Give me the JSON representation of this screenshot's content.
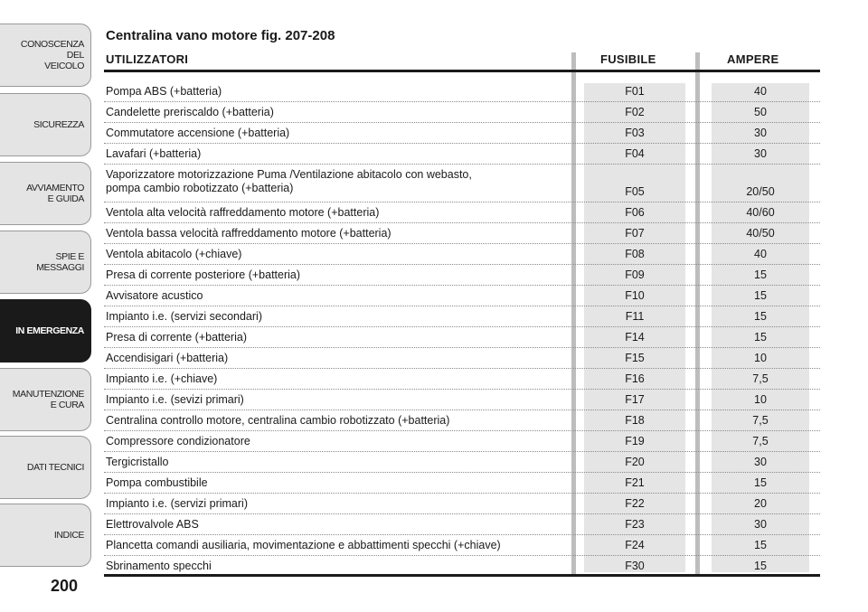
{
  "sidebar": {
    "tabs": [
      {
        "label": "CONOSCENZA\nDEL\nVEICOLO",
        "active": false
      },
      {
        "label": "SICUREZZA",
        "active": false
      },
      {
        "label": "AVVIAMENTO\nE GUIDA",
        "active": false
      },
      {
        "label": "SPIE E\nMESSAGGI",
        "active": false
      },
      {
        "label": "IN EMERGENZA",
        "active": true
      },
      {
        "label": "MANUTENZIONE\nE CURA",
        "active": false
      },
      {
        "label": "DATI TECNICI",
        "active": false
      },
      {
        "label": "INDICE",
        "active": false
      }
    ]
  },
  "page_number": "200",
  "title": "Centralina vano motore fig. 207-208",
  "table": {
    "headers": {
      "utilizzatori": "UTILIZZATORI",
      "fusibile": "FUSIBILE",
      "ampere": "AMPERE"
    },
    "rows": [
      {
        "u": "Pompa ABS (+batteria)",
        "f": "F01",
        "a": "40"
      },
      {
        "u": "Candelette preriscaldo (+batteria)",
        "f": "F02",
        "a": "50"
      },
      {
        "u": "Commutatore accensione (+batteria)",
        "f": "F03",
        "a": "30"
      },
      {
        "u": "Lavafari (+batteria)",
        "f": "F04",
        "a": "30"
      },
      {
        "u": "Vaporizzatore motorizzazione Puma /Ventilazione abitacolo con webasto,\npompa cambio robotizzato (+batteria)",
        "f": "F05",
        "a": "20/50"
      },
      {
        "u": "Ventola alta velocità raffreddamento motore (+batteria)",
        "f": "F06",
        "a": "40/60"
      },
      {
        "u": "Ventola bassa velocità raffreddamento motore (+batteria)",
        "f": "F07",
        "a": "40/50"
      },
      {
        "u": "Ventola abitacolo (+chiave)",
        "f": "F08",
        "a": "40"
      },
      {
        "u": "Presa di corrente posteriore (+batteria)",
        "f": "F09",
        "a": "15"
      },
      {
        "u": "Avvisatore acustico",
        "f": "F10",
        "a": "15"
      },
      {
        "u": "Impianto i.e. (servizi secondari)",
        "f": "F11",
        "a": "15"
      },
      {
        "u": "Presa di corrente (+batteria)",
        "f": "F14",
        "a": "15"
      },
      {
        "u": "Accendisigari (+batteria)",
        "f": "F15",
        "a": "10"
      },
      {
        "u": "Impianto i.e. (+chiave)",
        "f": "F16",
        "a": "7,5"
      },
      {
        "u": "Impianto i.e. (sevizi primari)",
        "f": "F17",
        "a": "10"
      },
      {
        "u": "Centralina controllo motore, centralina cambio robotizzato (+batteria)",
        "f": "F18",
        "a": "7,5"
      },
      {
        "u": "Compressore condizionatore",
        "f": "F19",
        "a": "7,5"
      },
      {
        "u": "Tergicristallo",
        "f": "F20",
        "a": "30"
      },
      {
        "u": "Pompa combustibile",
        "f": "F21",
        "a": "15"
      },
      {
        "u": "Impianto i.e. (servizi primari)",
        "f": "F22",
        "a": "20"
      },
      {
        "u": "Elettrovalvole ABS",
        "f": "F23",
        "a": "30"
      },
      {
        "u": "Plancetta comandi ausiliaria, movimentazione e abbattimenti specchi (+chiave)",
        "f": "F24",
        "a": "15"
      },
      {
        "u": "Sbrinamento specchi",
        "f": "F30",
        "a": "15"
      }
    ]
  }
}
